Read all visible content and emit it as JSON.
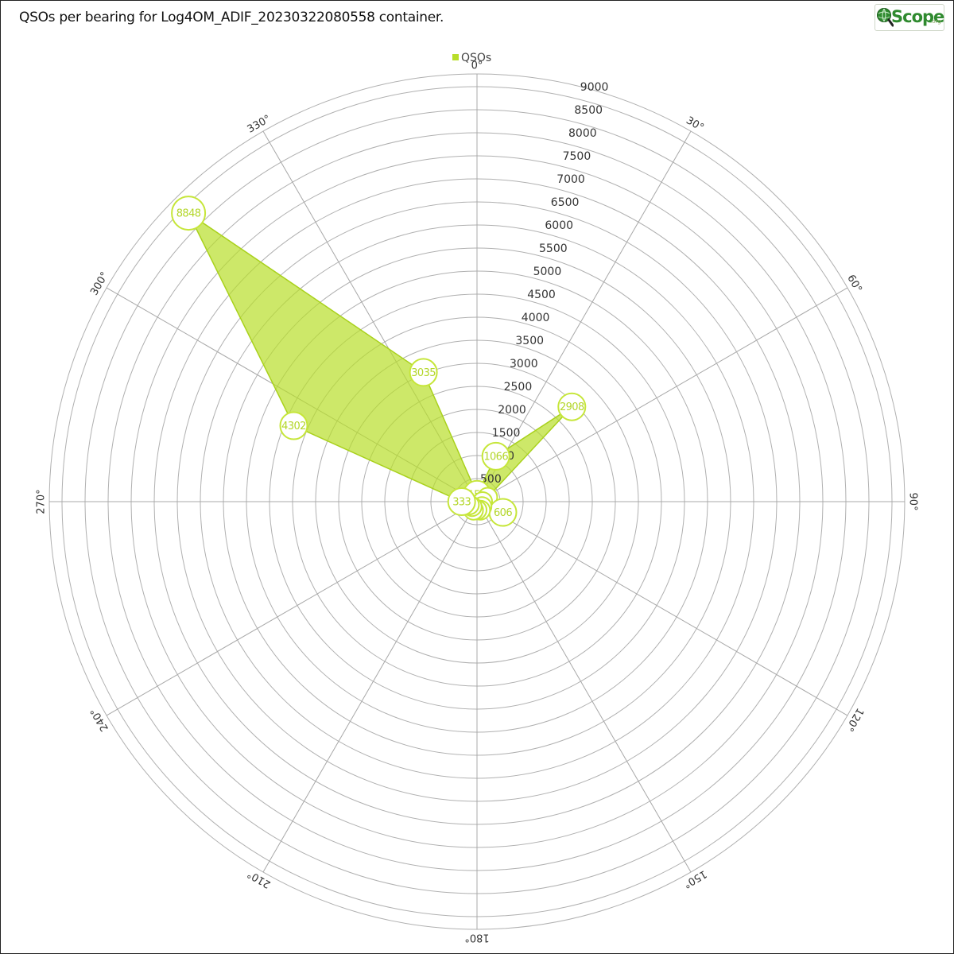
{
  "title": "QSOs per bearing for Log4OM_ADIF_20230322080558 container.",
  "logo": {
    "text": "Scope",
    "suffix": ".org"
  },
  "colors": {
    "series_fill": "#b8de2a",
    "series_stroke": "#a9d11c",
    "marker_stroke": "#c6e63a",
    "grid": "#b0b0b0"
  },
  "chart_data": {
    "type": "area",
    "subtype": "polar",
    "legend": {
      "position": "top-center",
      "entries": [
        "QSOs"
      ]
    },
    "radial_axis": {
      "min": 0,
      "max": 9000,
      "step": 500,
      "tick_labels": [
        "500",
        "1000",
        "1500",
        "2000",
        "2500",
        "3000",
        "3500",
        "4000",
        "4500",
        "5000",
        "5500",
        "6000",
        "6500",
        "7000",
        "7500",
        "8000",
        "8500",
        "9000"
      ]
    },
    "angular_axis": {
      "tick_angles": [
        0,
        30,
        60,
        90,
        120,
        150,
        180,
        210,
        240,
        270,
        300,
        330
      ],
      "tick_labels": [
        "0°",
        "30°",
        "60°",
        "90°",
        "120°",
        "150°",
        "180°",
        "210°",
        "240°",
        "270°",
        "300°",
        "330°"
      ]
    },
    "grid": true,
    "series": [
      {
        "name": "QSOs",
        "points": [
          {
            "bearing": 0,
            "value": 159,
            "label": "159"
          },
          {
            "bearing": 22.5,
            "value": 1066,
            "label": "1066"
          },
          {
            "bearing": 45,
            "value": 2908,
            "label": "2908"
          },
          {
            "bearing": 67.5,
            "value": 250,
            "label": ""
          },
          {
            "bearing": 90,
            "value": 120,
            "label": ""
          },
          {
            "bearing": 112.5,
            "value": 606,
            "label": "606"
          },
          {
            "bearing": 135,
            "value": 150,
            "label": ""
          },
          {
            "bearing": 157.5,
            "value": 200,
            "label": ""
          },
          {
            "bearing": 180,
            "value": 180,
            "label": ""
          },
          {
            "bearing": 202.5,
            "value": 200,
            "label": ""
          },
          {
            "bearing": 225,
            "value": 150,
            "label": ""
          },
          {
            "bearing": 247.5,
            "value": 180,
            "label": ""
          },
          {
            "bearing": 270,
            "value": 333,
            "label": "333"
          },
          {
            "bearing": 292.5,
            "value": 4302,
            "label": "4302"
          },
          {
            "bearing": 315,
            "value": 8848,
            "label": "8848"
          },
          {
            "bearing": 337.5,
            "value": 3035,
            "label": "3035"
          }
        ]
      }
    ]
  }
}
